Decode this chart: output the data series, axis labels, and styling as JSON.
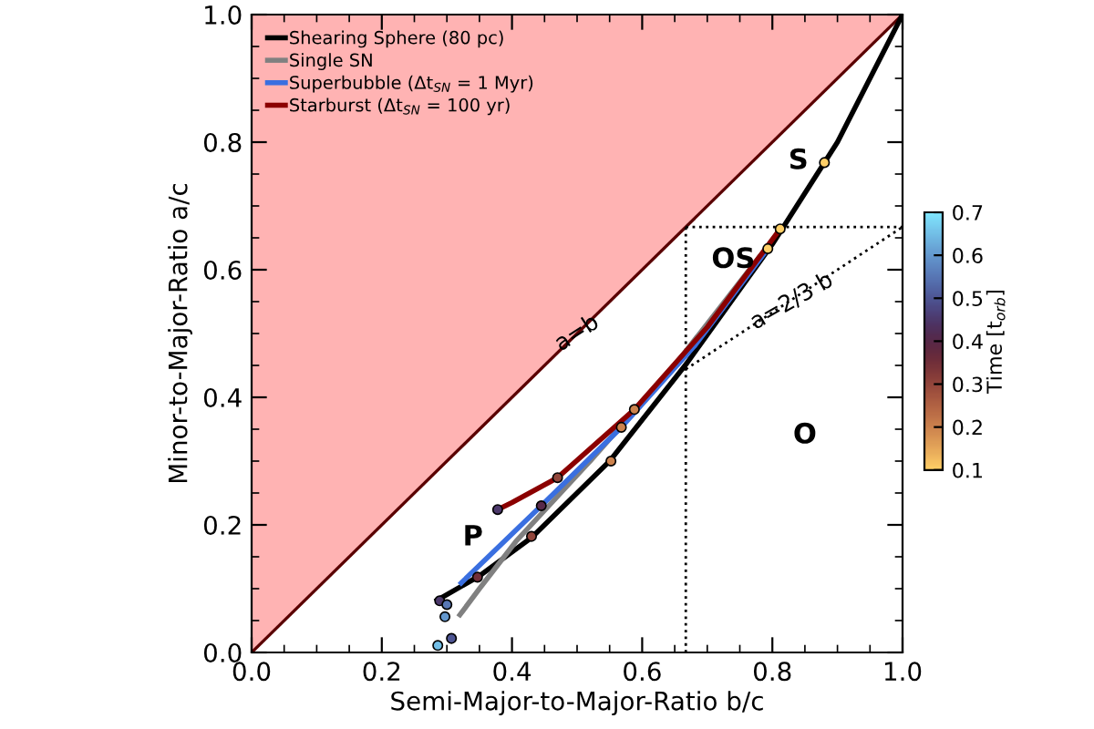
{
  "chart_data": {
    "type": "line",
    "xlabel": "Semi-Major-to-Major-Ratio b/c",
    "ylabel": "Minor-to-Major-Ratio a/c",
    "xlim": [
      0,
      1
    ],
    "ylim": [
      0,
      1
    ],
    "xticks": [
      {
        "value": 0,
        "label": "0.0"
      },
      0.2,
      0.4,
      0.6,
      0.8,
      {
        "value": 1,
        "label": "1.0"
      }
    ],
    "yticks": [
      {
        "value": 0,
        "label": "0.0"
      },
      0.2,
      0.4,
      0.6,
      0.8,
      {
        "value": 1,
        "label": "1.0"
      }
    ],
    "grid": false,
    "legend": "top left",
    "clabel": "Time [t$_{orb}$]",
    "clim": [
      0.1,
      0.7
    ],
    "cticks": [
      0.1,
      0.2,
      0.3,
      0.4,
      0.5,
      0.6,
      0.7
    ],
    "series": [
      {
        "type": "line",
        "color": "#ffb3b3",
        "x": [
          0,
          1
        ],
        "values": [
          null,
          null
        ],
        "lower": [
          0,
          1
        ],
        "upper": [
          1,
          1
        ]
      },
      {
        "type": "line",
        "color": "#5a0000",
        "x": [
          0,
          1
        ],
        "values": [
          0,
          1
        ]
      },
      {
        "type": "line",
        "color": "#000000",
        "line_style": "dotted",
        "x": [
          0.667,
          0.667
        ],
        "values": [
          0,
          0.667
        ]
      },
      {
        "type": "line",
        "color": "#000000",
        "line_style": "dotted",
        "x": [
          0.667,
          1
        ],
        "values": [
          0.667,
          0.667
        ]
      },
      {
        "type": "line",
        "color": "#000000",
        "line_style": "dotted",
        "x": [
          0.667,
          1
        ],
        "values": [
          0.444,
          0.667
        ]
      },
      {
        "name": "Shearing Sphere (80 pc)",
        "color": "#000000",
        "x": [
          0.285,
          0.35,
          0.43,
          0.55,
          0.669,
          0.8,
          0.9,
          1.0
        ],
        "values": [
          0.082,
          0.12,
          0.18,
          0.3,
          0.454,
          0.64,
          0.8,
          1.0
        ]
      },
      {
        "name": "Single SN",
        "color": "#808080",
        "x": [
          0.32,
          0.35,
          0.406,
          0.52,
          0.65,
          0.78
        ],
        "values": [
          0.059,
          0.1,
          0.174,
          0.3,
          0.45,
          0.62
        ]
      },
      {
        "name": "Superbubble (Δt$_{SN}$ = 1 Myr)",
        "color": "#3a6fe0",
        "x": [
          0.322,
          0.445,
          0.568,
          0.68,
          0.793
        ],
        "values": [
          0.109,
          0.23,
          0.353,
          0.48,
          0.633
        ]
      },
      {
        "name": "Starburst (Δt$_{SN}$ = 100 yr)",
        "color": "#8b0000",
        "x": [
          0.378,
          0.4,
          0.47,
          0.588,
          0.7,
          0.812
        ],
        "values": [
          0.224,
          0.235,
          0.274,
          0.381,
          0.51,
          0.664
        ]
      },
      {
        "type": "scatter",
        "color": "#000000",
        "x": [
          0.289,
          0.347,
          0.43,
          0.552,
          0.88,
          0.286,
          0.297,
          0.3,
          0.307,
          0.445,
          0.568,
          0.378,
          0.47,
          0.588,
          0.812,
          0.793
        ],
        "values": [
          0.081,
          0.118,
          0.182,
          0.3,
          0.768,
          0.011,
          0.056,
          0.075,
          0.022,
          0.23,
          0.353,
          0.224,
          0.274,
          0.381,
          0.664,
          0.633
        ],
        "cvalues": [
          0.45,
          0.35,
          0.3,
          0.2,
          0.1,
          0.65,
          0.6,
          0.55,
          0.5,
          0.4,
          0.2,
          0.45,
          0.3,
          0.2,
          0.1,
          0.1
        ]
      }
    ],
    "annotations": [
      "S",
      "OS",
      "P",
      "O",
      {
        "text": "a=b",
        "x": 0.5,
        "y": 0.5
      },
      {
        "text": "a=2/3 b",
        "x": 0.83,
        "y": 0.55
      }
    ]
  }
}
